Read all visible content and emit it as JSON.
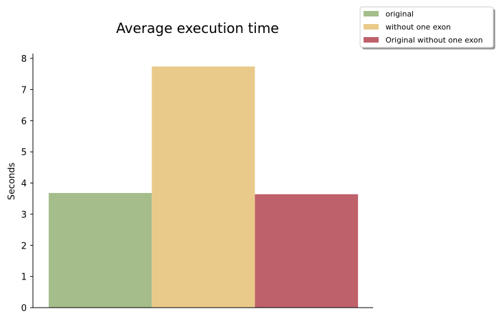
{
  "chart_data": {
    "type": "bar",
    "title": "Average execution time",
    "xlabel": "",
    "ylabel": "Seconds",
    "ylim": [
      0,
      8.1
    ],
    "yticks": [
      0,
      1,
      2,
      3,
      4,
      5,
      6,
      7,
      8
    ],
    "grid": false,
    "legend_position": "top-right",
    "series": [
      {
        "name": "original",
        "value": 3.68,
        "color": "#a4bd8b"
      },
      {
        "name": "without one exon",
        "value": 7.74,
        "color": "#eaca8a"
      },
      {
        "name": "Original without one exon",
        "value": 3.64,
        "color": "#bf616a"
      }
    ]
  }
}
